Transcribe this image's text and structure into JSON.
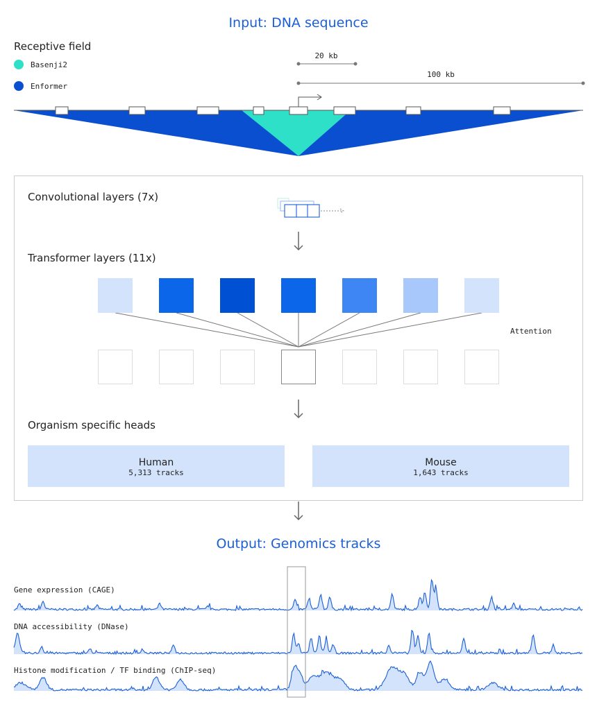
{
  "title": "Input: DNA sequence",
  "receptive_field": {
    "label": "Receptive field",
    "legend": [
      {
        "name": "Basenji2",
        "color": "#2ee0c8"
      },
      {
        "name": "Enformer",
        "color": "#0a4fd0"
      }
    ],
    "scales": [
      "20 kb",
      "100 kb"
    ]
  },
  "model": {
    "conv": "Convolutional layers (7x)",
    "transformer": "Transformer layers (11x)",
    "attention": "Attention",
    "heads_title": "Organism specific heads",
    "heads": [
      {
        "name": "Human",
        "tracks": "5,313 tracks"
      },
      {
        "name": "Mouse",
        "tracks": "1,643 tracks"
      }
    ]
  },
  "output": {
    "title": "Output: Genomics tracks",
    "tracks": [
      "Gene expression (CAGE)",
      "DNA accessibility (DNase)",
      "Histone modification / TF binding (ChIP-seq)"
    ]
  }
}
